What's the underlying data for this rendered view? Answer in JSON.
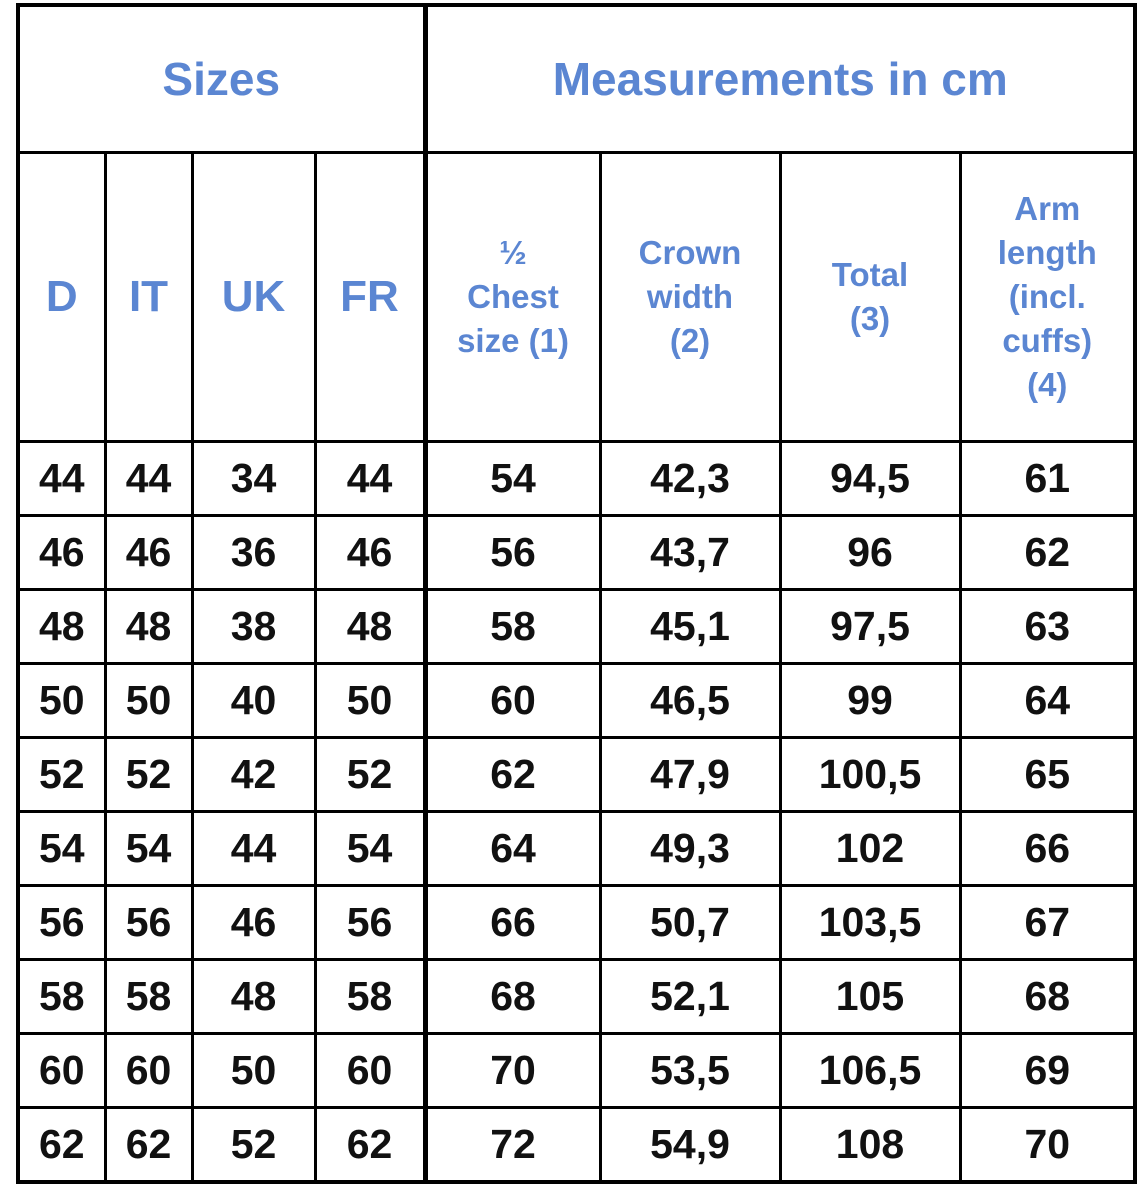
{
  "table": {
    "group_headers": [
      "Sizes",
      "Measurements in cm"
    ],
    "column_headers": [
      [
        "D"
      ],
      [
        "IT"
      ],
      [
        "UK"
      ],
      [
        "FR"
      ],
      [
        "½",
        "Chest",
        "size (1)"
      ],
      [
        "Crown",
        "width",
        "(2)"
      ],
      [
        "Total",
        "(3)"
      ],
      [
        "Arm",
        "length",
        "(incl.",
        "cuffs)",
        "(4)"
      ]
    ],
    "rows": [
      [
        "44",
        "44",
        "34",
        "44",
        "54",
        "42,3",
        "94,5",
        "61"
      ],
      [
        "46",
        "46",
        "36",
        "46",
        "56",
        "43,7",
        "96",
        "62"
      ],
      [
        "48",
        "48",
        "38",
        "48",
        "58",
        "45,1",
        "97,5",
        "63"
      ],
      [
        "50",
        "50",
        "40",
        "50",
        "60",
        "46,5",
        "99",
        "64"
      ],
      [
        "52",
        "52",
        "42",
        "52",
        "62",
        "47,9",
        "100,5",
        "65"
      ],
      [
        "54",
        "54",
        "44",
        "54",
        "64",
        "49,3",
        "102",
        "66"
      ],
      [
        "56",
        "56",
        "46",
        "56",
        "66",
        "50,7",
        "103,5",
        "67"
      ],
      [
        "58",
        "58",
        "48",
        "58",
        "68",
        "52,1",
        "105",
        "68"
      ],
      [
        "60",
        "60",
        "50",
        "60",
        "70",
        "53,5",
        "106,5",
        "69"
      ],
      [
        "62",
        "62",
        "52",
        "62",
        "72",
        "54,9",
        "108",
        "70"
      ]
    ]
  }
}
